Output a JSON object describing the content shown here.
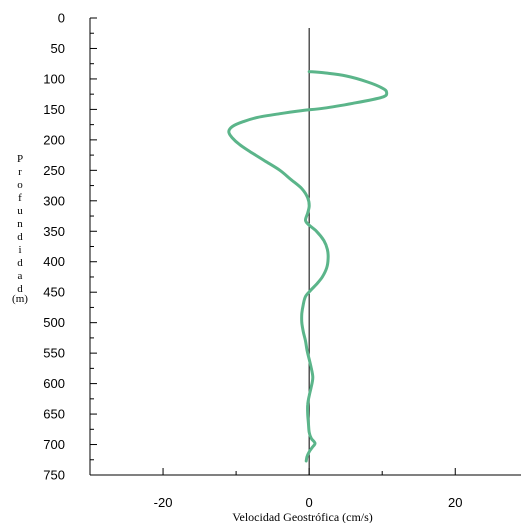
{
  "chart_data": {
    "type": "line",
    "title": "",
    "xlabel": "Velocidad Geostrófica (cm/s)",
    "ylabel": "Profundidad(m)",
    "ylabel_main": "Profundidad",
    "ylabel_unit": "(m)",
    "xlim": [
      -30,
      29
    ],
    "ylim": [
      0,
      750
    ],
    "y_inverted": true,
    "x_ticks": [
      -20,
      0,
      20
    ],
    "x_tick_labels": [
      "-20",
      "0",
      "20"
    ],
    "y_ticks": [
      0,
      50,
      100,
      150,
      200,
      250,
      300,
      350,
      400,
      450,
      500,
      550,
      600,
      650,
      700,
      750
    ],
    "y_tick_labels": [
      "0",
      "50",
      "100",
      "150",
      "200",
      "250",
      "300",
      "350",
      "400",
      "450",
      "500",
      "550",
      "600",
      "650",
      "700",
      "750"
    ],
    "reference_line_x": 0,
    "series": [
      {
        "color": "#5bb58a",
        "points": [
          [
            0,
            88
          ],
          [
            2,
            90
          ],
          [
            5,
            95
          ],
          [
            8,
            105
          ],
          [
            10,
            115
          ],
          [
            10.6,
            122
          ],
          [
            10,
            130
          ],
          [
            6,
            140
          ],
          [
            2,
            148
          ],
          [
            -1,
            152
          ],
          [
            -4,
            157
          ],
          [
            -7,
            163
          ],
          [
            -9,
            170
          ],
          [
            -10.5,
            178
          ],
          [
            -11,
            187
          ],
          [
            -10.5,
            197
          ],
          [
            -9.5,
            208
          ],
          [
            -8,
            220
          ],
          [
            -6,
            235
          ],
          [
            -4,
            250
          ],
          [
            -2.5,
            265
          ],
          [
            -1,
            280
          ],
          [
            -0.2,
            295
          ],
          [
            0,
            308
          ],
          [
            -0.2,
            320
          ],
          [
            -0.5,
            332
          ],
          [
            0,
            340
          ],
          [
            1,
            350
          ],
          [
            2,
            365
          ],
          [
            2.5,
            380
          ],
          [
            2.6,
            395
          ],
          [
            2.4,
            410
          ],
          [
            1.8,
            425
          ],
          [
            1,
            437
          ],
          [
            0.2,
            447
          ],
          [
            -0.5,
            457
          ],
          [
            -0.8,
            470
          ],
          [
            -1,
            485
          ],
          [
            -1,
            500
          ],
          [
            -0.8,
            515
          ],
          [
            -0.5,
            530
          ],
          [
            -0.3,
            545
          ],
          [
            0,
            560
          ],
          [
            0.3,
            575
          ],
          [
            0.5,
            590
          ],
          [
            0.3,
            605
          ],
          [
            0,
            620
          ],
          [
            -0.2,
            635
          ],
          [
            -0.2,
            650
          ],
          [
            -0.1,
            665
          ],
          [
            0,
            680
          ],
          [
            0.3,
            690
          ],
          [
            0.8,
            698
          ],
          [
            0.4,
            705
          ],
          [
            0,
            712
          ],
          [
            -0.3,
            720
          ],
          [
            -0.4,
            727
          ]
        ]
      }
    ]
  }
}
